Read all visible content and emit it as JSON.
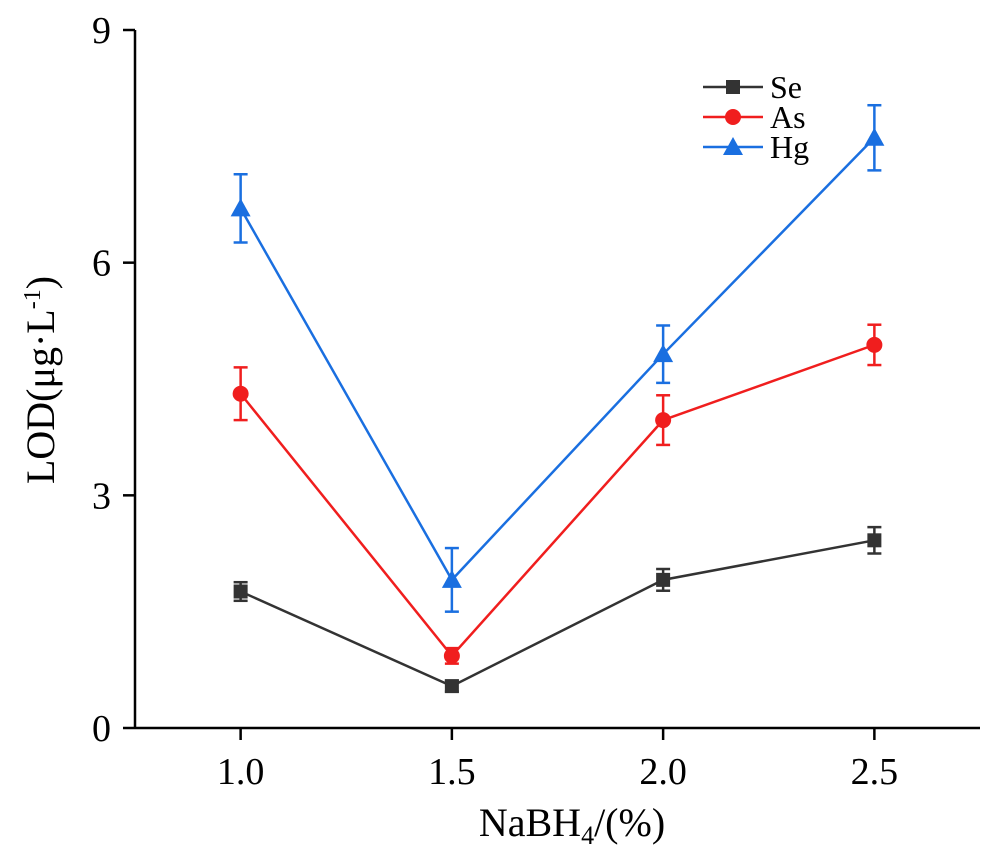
{
  "chart_data": {
    "type": "line",
    "title": "",
    "xlabel": {
      "main": "NaBH",
      "sub": "4",
      "tail": "/(%)"
    },
    "ylabel": {
      "main": "LOD(μg·L",
      "sup": "-1",
      "tail": ")"
    },
    "x": [
      1.0,
      1.5,
      2.0,
      2.5
    ],
    "x_tick_labels": [
      "1.0",
      "1.5",
      "2.0",
      "2.5"
    ],
    "xlim": [
      0.75,
      2.75
    ],
    "ylim": [
      0,
      9
    ],
    "y_ticks": [
      0,
      3,
      6,
      9
    ],
    "y_tick_labels": [
      "0",
      "3",
      "6",
      "9"
    ],
    "grid": false,
    "legend_position": "top-right",
    "series": [
      {
        "name": "Se",
        "color": "#333333",
        "marker": "square",
        "values": [
          1.76,
          0.54,
          1.91,
          2.42
        ],
        "errors": [
          0.12,
          0.07,
          0.14,
          0.17
        ]
      },
      {
        "name": "As",
        "color": "#f01e1e",
        "marker": "circle",
        "values": [
          4.31,
          0.93,
          3.97,
          4.94
        ],
        "errors": [
          0.34,
          0.1,
          0.32,
          0.26
        ]
      },
      {
        "name": "Hg",
        "color": "#1a6fe0",
        "marker": "triangle",
        "values": [
          6.7,
          1.91,
          4.82,
          7.61
        ],
        "errors": [
          0.44,
          0.41,
          0.37,
          0.42
        ]
      }
    ]
  }
}
